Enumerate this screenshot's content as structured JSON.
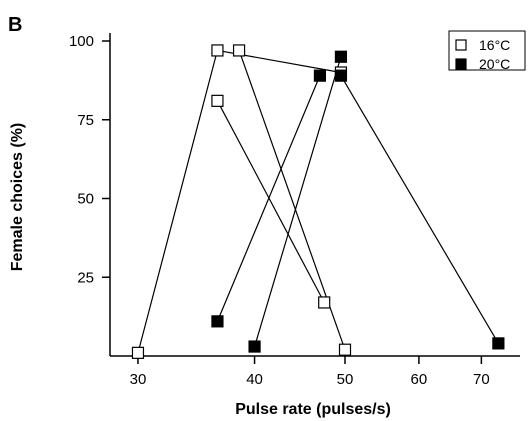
{
  "chart_data": {
    "type": "line",
    "panel_label": "B",
    "title": "",
    "xlabel": "Pulse rate (pulses/s)",
    "ylabel": "Female choices (%)",
    "x_scale": "log",
    "xlim": [
      28,
      77
    ],
    "ylim": [
      0,
      100
    ],
    "x_ticks": [
      30,
      40,
      50,
      60,
      70
    ],
    "y_ticks": [
      25,
      50,
      75,
      100
    ],
    "legend_position": "top-right",
    "series": [
      {
        "name": "16°C",
        "marker": "open-square",
        "segments": [
          [
            [
              30,
              1
            ],
            [
              36.5,
              97
            ],
            [
              49.5,
              90
            ]
          ],
          [
            [
              38.5,
              97
            ],
            [
              50,
              2
            ]
          ],
          [
            [
              36.5,
              81
            ],
            [
              47.5,
              17
            ]
          ]
        ]
      },
      {
        "name": "20°C",
        "marker": "filled-square",
        "segments": [
          [
            [
              36.5,
              11
            ],
            [
              47,
              89
            ]
          ],
          [
            [
              40,
              3
            ],
            [
              49.5,
              95
            ]
          ],
          [
            [
              49.5,
              89
            ],
            [
              73,
              4
            ]
          ]
        ]
      }
    ]
  }
}
